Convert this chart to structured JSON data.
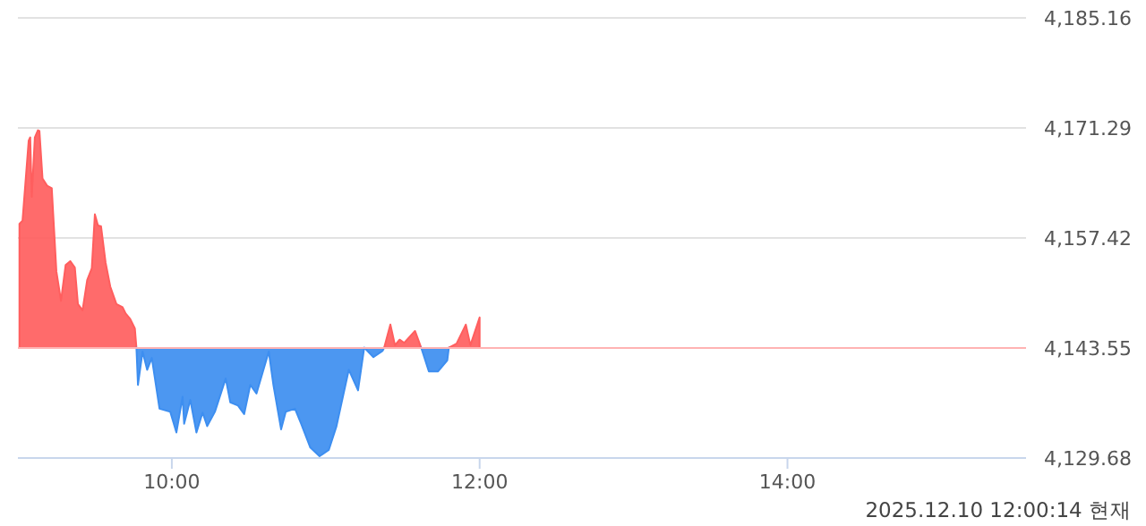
{
  "chart_data": {
    "type": "area",
    "annotations": [
      "2025.12.10 12:00:14 현재"
    ],
    "xlim": [
      9,
      15.55
    ],
    "xticks": [
      {
        "value": 10,
        "label": "10:00"
      },
      {
        "value": 12,
        "label": "12:00"
      },
      {
        "value": 14,
        "label": "14:00"
      }
    ],
    "ylim": [
      4129.68,
      4185.16
    ],
    "yticks": [
      {
        "value": 4129.68,
        "label": "4,129.68"
      },
      {
        "value": 4143.55,
        "label": "4,143.55"
      },
      {
        "value": 4157.42,
        "label": "4,157.42"
      },
      {
        "value": 4171.29,
        "label": "4,171.29"
      },
      {
        "value": 4185.16,
        "label": "4,185.16"
      }
    ],
    "grid": "y",
    "ref_lines": [
      {
        "axis": "y",
        "value": 4143.55,
        "color": "#ffb3b3"
      }
    ],
    "series": [
      {
        "color": "#ff5e5e",
        "x": [
          9.01,
          9.03,
          9.07,
          9.08,
          9.09,
          9.11,
          9.13,
          9.14,
          9.16,
          9.19,
          9.22,
          9.25,
          9.28,
          9.31,
          9.34,
          9.37,
          9.39,
          9.42,
          9.45,
          9.48,
          9.5,
          9.52,
          9.54,
          9.57,
          9.6,
          9.64,
          9.68,
          9.7,
          9.73,
          9.76,
          9.77
        ],
        "values": [
          4159.2,
          4159.6,
          4169.7,
          4170.1,
          4162.6,
          4170.1,
          4171.0,
          4170.9,
          4164.9,
          4164.0,
          4163.7,
          4153.2,
          4149.5,
          4154.0,
          4154.5,
          4153.7,
          4149.1,
          4148.3,
          4152.1,
          4153.6,
          4160.4,
          4159.0,
          4158.9,
          4154.3,
          4151.3,
          4149.1,
          4148.7,
          4147.9,
          4147.2,
          4146.0,
          4143.6
        ]
      },
      {
        "color": "#3d8ef0",
        "x": [
          9.77,
          9.78,
          9.81,
          9.84,
          9.87,
          9.92,
          9.99,
          10.03,
          10.07,
          10.08,
          10.12,
          10.16,
          10.2,
          10.23,
          10.28,
          10.35,
          10.38,
          10.43,
          10.47,
          10.51,
          10.55,
          10.63,
          10.66,
          10.71,
          10.74,
          10.8,
          10.84,
          10.9,
          10.96,
          11.02,
          11.07,
          11.15,
          11.21,
          11.25,
          11.31,
          11.37,
          11.38
        ],
        "values": [
          4143.6,
          4138.9,
          4143.1,
          4140.8,
          4142.3,
          4135.9,
          4135.5,
          4132.9,
          4137.4,
          4134.0,
          4137.0,
          4132.9,
          4135.4,
          4133.7,
          4135.5,
          4139.7,
          4136.7,
          4136.3,
          4135.2,
          4138.9,
          4137.8,
          4143.1,
          4138.9,
          4133.3,
          4135.5,
          4135.9,
          4134.0,
          4131.0,
          4129.9,
          4130.7,
          4133.7,
          4140.8,
          4138.2,
          4143.6,
          4142.4,
          4143.2,
          4143.6
        ]
      },
      {
        "color": "#ff5e5e",
        "x": [
          11.38,
          11.42,
          11.45,
          11.48,
          11.51,
          11.58,
          11.62
        ],
        "values": [
          4143.6,
          4146.5,
          4143.9,
          4144.6,
          4144.2,
          4145.7,
          4143.6
        ]
      },
      {
        "color": "#3d8ef0",
        "x": [
          11.62,
          11.67,
          11.73,
          11.79,
          11.8
        ],
        "values": [
          4143.6,
          4140.6,
          4140.6,
          4142.0,
          4143.6
        ]
      },
      {
        "color": "#ff5e5e",
        "x": [
          11.8,
          11.85,
          11.91,
          11.94,
          12.0
        ],
        "values": [
          4143.6,
          4144.1,
          4146.5,
          4143.9,
          4147.4
        ]
      }
    ]
  }
}
